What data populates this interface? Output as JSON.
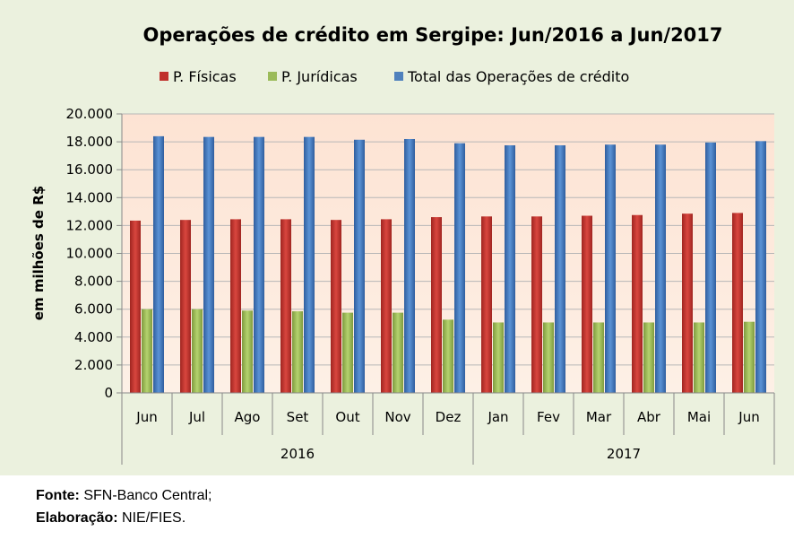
{
  "chart_data": {
    "type": "bar",
    "title": "Operações de crédito em Sergipe: Jun/2016 a Jun/2017",
    "ylabel": "em milhões de R$",
    "ylim": [
      0,
      20000
    ],
    "yticks": [
      0,
      2000,
      4000,
      6000,
      8000,
      10000,
      12000,
      14000,
      16000,
      18000,
      20000
    ],
    "ytick_labels": [
      "0",
      "2.000",
      "4.000",
      "6.000",
      "8.000",
      "10.000",
      "12.000",
      "14.000",
      "16.000",
      "18.000",
      "20.000"
    ],
    "categories": [
      "Jun",
      "Jul",
      "Ago",
      "Set",
      "Out",
      "Nov",
      "Dez",
      "Jan",
      "Fev",
      "Mar",
      "Abr",
      "Mai",
      "Jun"
    ],
    "groups": [
      {
        "label": "2016",
        "count": 7
      },
      {
        "label": "2017",
        "count": 6
      }
    ],
    "legend_position": "top",
    "grid": true,
    "series": [
      {
        "name": "P. Físicas",
        "color": "#c0302b",
        "values": [
          12350,
          12400,
          12450,
          12450,
          12400,
          12450,
          12600,
          12650,
          12650,
          12700,
          12750,
          12850,
          12900
        ]
      },
      {
        "name": "P. Jurídicas",
        "color": "#9bbb59",
        "values": [
          6000,
          6000,
          5900,
          5850,
          5750,
          5750,
          5250,
          5050,
          5050,
          5050,
          5050,
          5050,
          5100
        ]
      },
      {
        "name": "Total das Operações de crédito",
        "color": "#4f81bd",
        "values": [
          18400,
          18350,
          18350,
          18350,
          18150,
          18200,
          17900,
          17750,
          17750,
          17800,
          17800,
          17950,
          18050
        ]
      }
    ]
  },
  "footer": {
    "source_label": "Fonte:",
    "source_value": " SFN-Banco Central;",
    "credit_label": "Elaboração:",
    "credit_value": " NIE/FIES."
  }
}
